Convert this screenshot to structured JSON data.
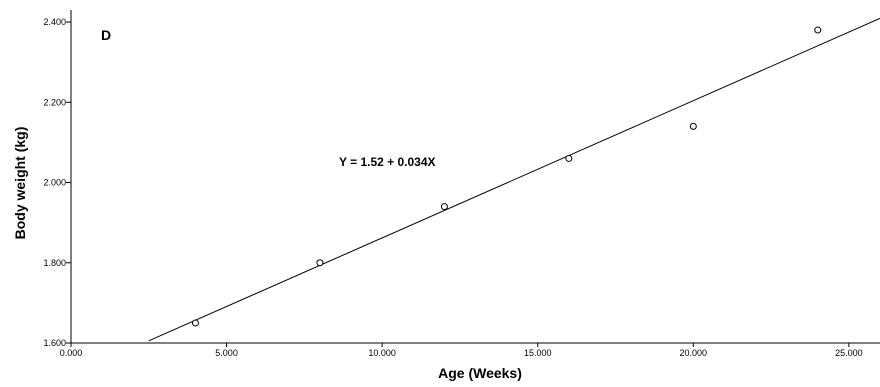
{
  "chart_data": {
    "type": "scatter",
    "panel_label": "D",
    "xlabel": "Age (Weeks)",
    "ylabel": "Body weight (kg)",
    "xlim": [
      0,
      26
    ],
    "ylim": [
      1.6,
      2.43
    ],
    "x_ticks": [
      0,
      5,
      10,
      15,
      20,
      25
    ],
    "x_tick_labels": [
      "0.000",
      "5.000",
      "10.000",
      "15.000",
      "20.000",
      "25.000"
    ],
    "y_ticks": [
      1.6,
      1.8,
      2.0,
      2.2,
      2.4
    ],
    "y_tick_labels": [
      "1.600",
      "1.800",
      "2.000",
      "2.200",
      "2.400"
    ],
    "points": [
      {
        "x": 4,
        "y": 1.65
      },
      {
        "x": 8,
        "y": 1.8
      },
      {
        "x": 12,
        "y": 1.94
      },
      {
        "x": 16,
        "y": 2.06
      },
      {
        "x": 20,
        "y": 2.14
      },
      {
        "x": 24,
        "y": 2.38
      }
    ],
    "fit_line": {
      "intercept": 1.52,
      "slope": 0.0342,
      "x_range": [
        2.5,
        26
      ]
    },
    "equation_text": "Y = 1.52 + 0.034X",
    "grid": false,
    "colors": {
      "line": "#000000",
      "marker_stroke": "#000000",
      "background": "#ffffff"
    }
  }
}
